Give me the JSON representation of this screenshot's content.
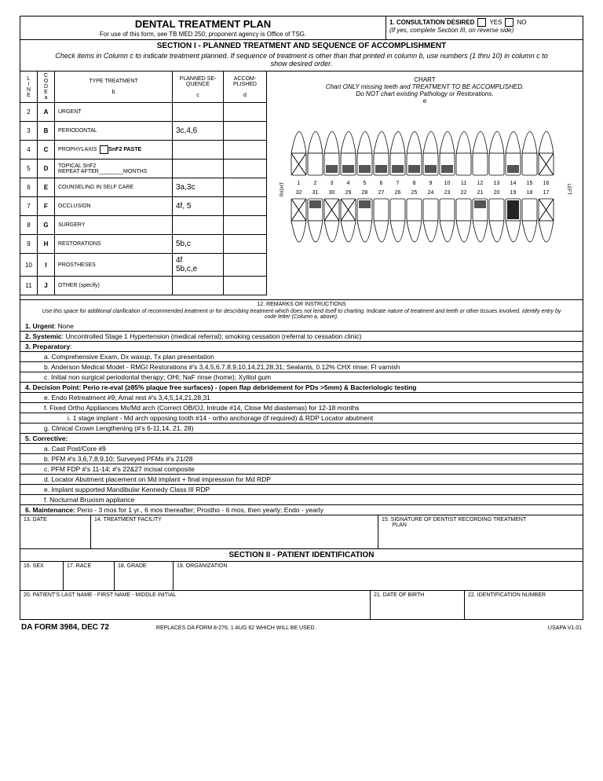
{
  "header": {
    "title": "DENTAL TREATMENT PLAN",
    "subtitle": "For use of this form, see TB MED 250; proponent agency is Office of TSG.",
    "consult_label": "1.  CONSULTATION DESIRED",
    "yes": "YES",
    "no": "NO",
    "consult_note": "(If yes, complete Section III, on reverse side)"
  },
  "section1": {
    "title": "SECTION I - PLANNED TREATMENT AND SEQUENCE OF ACCOMPLISHMENT",
    "inst": "Check items in Column c to indicate treatment planned.  If sequence of treatment is other than that printed in column b, use numbers (1 thru 10) in column c to show desired order."
  },
  "cols": {
    "line": "L\nI\nN\nE",
    "code": "C\nO\nD\nE\na",
    "type": "TYPE TREATMENT",
    "type_sub": "b",
    "seq": "PLANNED SE-QUENCE",
    "seq_sub": "c",
    "acc": "ACCOM-PLISHED",
    "acc_sub": "d",
    "chart": "CHART",
    "chart_sub1": "Chart ONLY missing teeth and TREATMENT TO BE ACCOMPLISHED.",
    "chart_sub2": "Do NOT chart existing Pathology or Restorations.",
    "chart_sub3": "e"
  },
  "rows": [
    {
      "n": "2",
      "c": "A",
      "t": "URGENT",
      "s": ""
    },
    {
      "n": "3",
      "c": "B",
      "t": "PERIODONTAL",
      "s": "3c,4,6"
    },
    {
      "n": "4",
      "c": "C",
      "t": "PROPHYLAXIS",
      "s": "",
      "extra": "SnF2  PASTE",
      "box": true
    },
    {
      "n": "5",
      "c": "D",
      "t": "TOPICAL  SnF2\nREPEAT AFTER________MONTHS",
      "s": ""
    },
    {
      "n": "6",
      "c": "E",
      "t": "COUNSELING IN SELF CARE",
      "s": "3a,3c"
    },
    {
      "n": "7",
      "c": "F",
      "t": "OCCLUSION",
      "s": "4f, 5"
    },
    {
      "n": "8",
      "c": "G",
      "t": "SURGERY",
      "s": ""
    },
    {
      "n": "9",
      "c": "H",
      "t": "RESTORATIONS",
      "s": "5b,c"
    },
    {
      "n": "10",
      "c": "I",
      "t": "PROSTHESES",
      "s": "4f\n5b,c,e"
    },
    {
      "n": "11",
      "c": "J",
      "t": "OTHER  (specify)",
      "s": ""
    }
  ],
  "teeth": {
    "upper": [
      1,
      2,
      3,
      4,
      5,
      6,
      7,
      8,
      9,
      10,
      11,
      12,
      13,
      14,
      15,
      16
    ],
    "lower": [
      32,
      31,
      30,
      29,
      28,
      27,
      26,
      25,
      24,
      23,
      22,
      21,
      20,
      19,
      18,
      17
    ],
    "right": "RIGHT",
    "left": "LEFT"
  },
  "remarks": {
    "hdr": "12. REMARKS OR INSTRUCTIONS",
    "inst": "Use this space for additional clarification of recommended treatment or for describing treatment which does not lend itself to charting. Indicate nature of treatment and teeth or other tissues involved.  Identify entry by code letter (Column a, above).",
    "lines": [
      {
        "t": "<b>1.  Urgent</b>: None",
        "i": 0
      },
      {
        "t": "<b>2.  Systemic</b>: Uncontrolled Stage 1 Hypertension (medical referral); smoking cessation (referral to cessation clinic)",
        "i": 0
      },
      {
        "t": "<b>3.  Preparatory</b>:",
        "i": 0
      },
      {
        "t": "a.  Comprehensive Exam, Dx waxup, Tx plan presentation",
        "i": 1
      },
      {
        "t": "b.  Anderson Medical Model - RMGI Restorations #'s 3,4,5,6,7,8,9,10,14,21,28,31; Sealants, 0.12% CHX rinse; Fl varnish",
        "i": 1
      },
      {
        "t": "c.  Initial non surgical periodontal therapy; OHI; NaF rinse (home); Xylitol gum",
        "i": 1
      },
      {
        "t": "<b>4. Decision Point:  Perio re-eval (≥85% plaque free surfaces) - (open flap debridement for PDs >5mm) & Bacteriologic testing</b>",
        "i": 0
      },
      {
        "t": "e.  Endo Retreatment #9; Amal rest #'s 3,4,5,14,21,28,31",
        "i": 1
      },
      {
        "t": "f.  Fixed Ortho Appliances Mx/Md arch (Correct OB/OJ, Intrude #14, Close Md diastemas) for 12-18 months",
        "i": 1
      },
      {
        "t": "i.  1 stage implant - Md arch opposing tooth #14 - ortho anchorage (if required) & RDP Locator abutment",
        "i": 2
      },
      {
        "t": "g.  Clinical Crown Lengthening (#'s 6-11,14, 21, 28)",
        "i": 1
      },
      {
        "t": "<b>5. Corrective:</b>",
        "i": 0
      },
      {
        "t": "a.  Cast Post/Core #9",
        "i": 1
      },
      {
        "t": "b.  PFM #'s 3,6,7,8,9,10; Surveyed PFMs #'s 21/28",
        "i": 1
      },
      {
        "t": "c.  PFM FDP #'s 11-14; #'s 22&27 incisal composite",
        "i": 1
      },
      {
        "t": "d.  Locator Abutment placement on Md implant + final impression for Md RDP",
        "i": 1
      },
      {
        "t": "e.  Implant supported Mandibular Kennedy Class III RDP",
        "i": 1
      },
      {
        "t": "f.  Nocturnal Bruxism appliance",
        "i": 1
      },
      {
        "t": "<b>6.  Maintenance:</b>  Perio - 3 mos for 1 yr., 6 mos thereafter; Prostho  - 6 mos, then yearly; Endo - yearly",
        "i": 0
      }
    ]
  },
  "sig": {
    "date": "13. DATE",
    "facility": "14. TREATMENT FACILITY",
    "sign": "15. SIGNATURE OF DENTIST RECORDING TREATMENT\n       PLAN"
  },
  "section2": "SECTION II - PATIENT IDENTIFICATION",
  "pi": {
    "sex": "16. SEX",
    "race": "17. RACE",
    "grade": "18. GRADE",
    "org": "19. ORGANIZATION",
    "name": "20. PATIENT'S LAST NAME - FIRST NAME - MIDDLE INITIAL",
    "dob": "21. DATE OF BIRTH",
    "id": "22. IDENTIFICATION NUMBER"
  },
  "footer": {
    "form": "DA FORM 3984, DEC 72",
    "replaces": "REPLACES DA FORM 8-276, 1 AUG 62 WHICH WILL BE USED.",
    "ver": "USAPA V1.01"
  }
}
